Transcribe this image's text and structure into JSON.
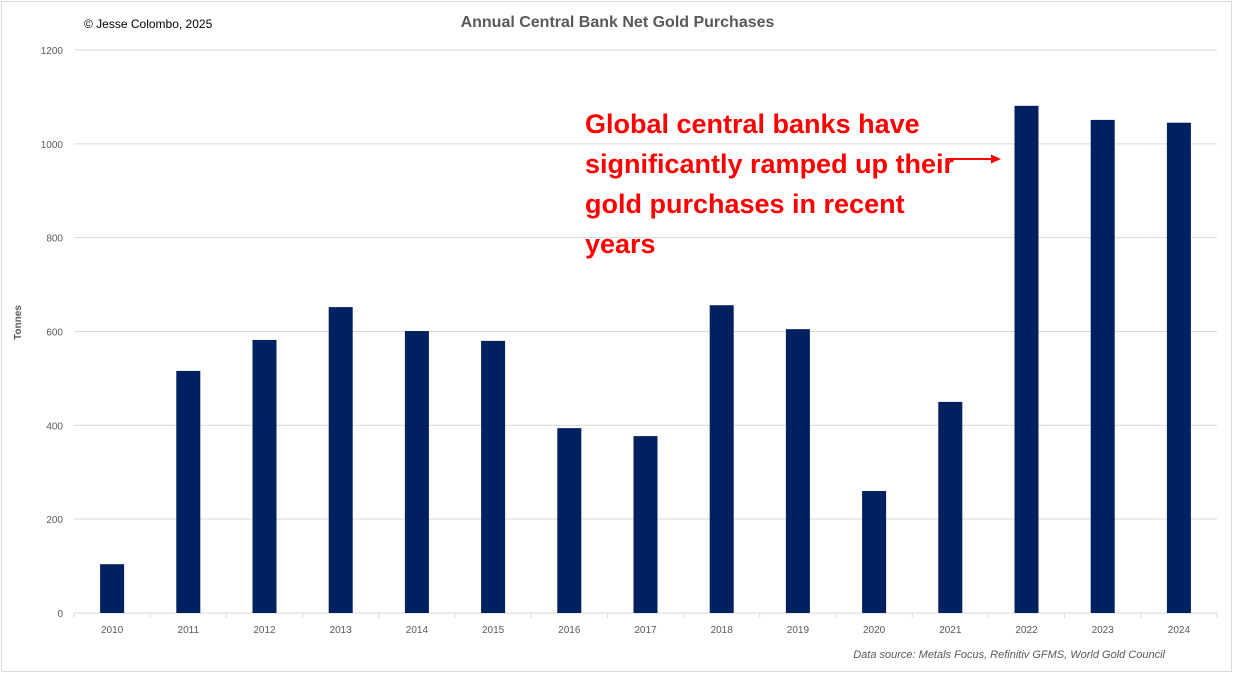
{
  "chart_data": {
    "type": "bar",
    "title": "Annual Central Bank Net Gold Purchases",
    "ylabel": "Tonnes",
    "xlabel": "",
    "ylim": [
      0,
      1200
    ],
    "yticks": [
      0,
      200,
      400,
      600,
      800,
      1000,
      1200
    ],
    "grid": true,
    "categories": [
      "2010",
      "2011",
      "2012",
      "2013",
      "2014",
      "2015",
      "2016",
      "2017",
      "2018",
      "2019",
      "2020",
      "2021",
      "2022",
      "2023",
      "2024"
    ],
    "values": [
      104,
      516,
      582,
      652,
      601,
      580,
      394,
      377,
      656,
      605,
      260,
      450,
      1081,
      1051,
      1045
    ],
    "bar_color": "#002060",
    "annotation": "Global central banks have significantly ramped up their gold purchases in recent years",
    "annotation_color": "#ff0000"
  },
  "copyright": "© Jesse Colombo, 2025",
  "source": "Data source: Metals Focus, Refinitiv GFMS, World Gold Council"
}
